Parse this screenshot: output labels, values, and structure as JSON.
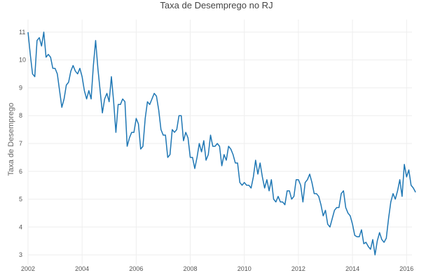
{
  "chart_data": {
    "type": "line",
    "title": "Taxa de Desemprego no RJ",
    "xlabel": "",
    "ylabel": "Taxa de Desemprego",
    "xlim": [
      2002.0,
      2016.2
    ],
    "ylim": [
      2.65,
      11.45
    ],
    "x_ticks": [
      2002,
      2004,
      2006,
      2008,
      2010,
      2012,
      2014,
      2016
    ],
    "x_tick_labels": [
      "2002",
      "2004",
      "2006",
      "2008",
      "2010",
      "2012",
      "2014",
      "2016"
    ],
    "y_ticks": [
      3,
      4,
      5,
      6,
      7,
      8,
      9,
      10,
      11
    ],
    "y_tick_labels": [
      "3",
      "4",
      "5",
      "6",
      "7",
      "8",
      "9",
      "10",
      "11"
    ],
    "grid": true,
    "line_color": "#1f77b4",
    "series": [
      {
        "x_start": 2002.0,
        "x_step_months": 1,
        "values": [
          11.0,
          10.2,
          9.5,
          9.4,
          10.7,
          10.8,
          10.5,
          11.0,
          10.1,
          10.2,
          10.1,
          9.7,
          9.7,
          9.5,
          8.9,
          8.3,
          8.6,
          9.1,
          9.2,
          9.6,
          9.8,
          9.6,
          9.5,
          9.7,
          9.4,
          8.9,
          8.6,
          8.9,
          8.6,
          9.8,
          10.7,
          9.7,
          8.9,
          8.1,
          8.6,
          8.8,
          8.5,
          9.4,
          8.5,
          7.4,
          8.4,
          8.4,
          8.6,
          8.5,
          6.9,
          7.2,
          7.4,
          7.4,
          7.9,
          7.7,
          6.8,
          6.9,
          7.9,
          8.5,
          8.4,
          8.6,
          8.8,
          8.7,
          8.2,
          7.5,
          7.3,
          7.3,
          6.5,
          6.6,
          7.5,
          7.4,
          7.5,
          8.0,
          8.0,
          7.1,
          7.4,
          7.2,
          6.5,
          6.5,
          6.1,
          6.5,
          7.0,
          6.7,
          7.1,
          6.4,
          6.6,
          7.3,
          6.9,
          6.9,
          7.0,
          6.9,
          6.2,
          6.6,
          6.4,
          6.9,
          6.8,
          6.6,
          6.3,
          6.3,
          5.6,
          5.5,
          5.6,
          5.5,
          5.5,
          5.4,
          5.8,
          6.4,
          5.9,
          6.3,
          5.8,
          5.4,
          5.7,
          5.3,
          5.7,
          5.0,
          4.9,
          5.1,
          4.9,
          4.9,
          4.8,
          5.3,
          5.3,
          5.0,
          5.1,
          5.7,
          5.7,
          5.5,
          4.9,
          5.6,
          5.7,
          5.9,
          5.6,
          5.2,
          5.2,
          5.1,
          4.8,
          4.4,
          4.6,
          4.1,
          4.0,
          4.3,
          4.6,
          4.7,
          4.7,
          5.2,
          5.3,
          4.7,
          4.5,
          4.4,
          4.1,
          3.7,
          3.65,
          3.65,
          3.9,
          3.4,
          3.45,
          3.3,
          3.2,
          3.55,
          3.0,
          3.5,
          3.8,
          3.55,
          3.45,
          3.6,
          4.3,
          4.9,
          5.2,
          5.0,
          5.3,
          5.7,
          5.1,
          6.25,
          5.8,
          6.05,
          5.5,
          5.4,
          5.25
        ]
      }
    ]
  }
}
